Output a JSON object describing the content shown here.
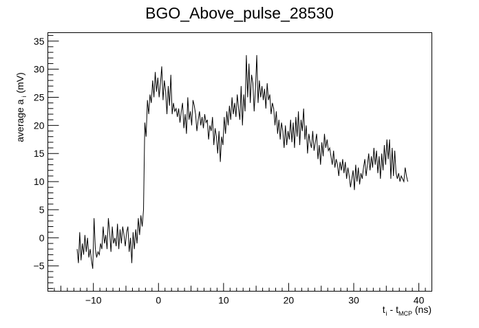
{
  "chart_data": {
    "type": "line",
    "title": "BGO_Above_pulse_28530",
    "ylabel": {
      "main": "average a",
      "sub": "i",
      "unit": " (mV)"
    },
    "xlabel": {
      "t": "t",
      "t_sub": "i",
      "sep": " - t",
      "mcp_sub": "MCP",
      "unit": " (ns)"
    },
    "xlim": [
      -17,
      42
    ],
    "ylim": [
      -9.5,
      36.5
    ],
    "x_ticks": [
      -10,
      0,
      10,
      20,
      30,
      40
    ],
    "x_tick_labels": [
      "−10",
      "0",
      "10",
      "20",
      "30",
      "40"
    ],
    "y_ticks": [
      -5,
      0,
      5,
      10,
      15,
      20,
      25,
      30,
      35
    ],
    "y_tick_labels": [
      "−5",
      "0",
      "5",
      "10",
      "15",
      "20",
      "25",
      "30",
      "35"
    ],
    "line_color": "#000000",
    "grid": false,
    "legend": "none",
    "series": [
      {
        "x_start": -12.5,
        "x_step": 0.2,
        "values": [
          -2.0,
          -4.5,
          1.0,
          -4.0,
          -1.0,
          -3.0,
          0.5,
          -2.5,
          0.0,
          -3.5,
          -2.0,
          -4.0,
          -5.5,
          3.5,
          -2.0,
          -3.5,
          -2.5,
          -3.0,
          -1.0,
          -2.0,
          2.0,
          -1.0,
          0.5,
          -2.0,
          3.5,
          1.0,
          -2.5,
          2.0,
          -1.0,
          0.0,
          -1.5,
          2.5,
          -2.0,
          1.5,
          -1.0,
          2.0,
          0.5,
          -1.5,
          1.0,
          2.0,
          -2.5,
          0.0,
          -4.5,
          1.0,
          -2.0,
          1.5,
          -1.0,
          3.5,
          0.5,
          4.0,
          2.0,
          5.0,
          20.5,
          18.0,
          24.5,
          22.0,
          25.5,
          24.0,
          28.0,
          25.0,
          29.5,
          26.0,
          28.5,
          25.0,
          27.5,
          30.5,
          24.5,
          28.0,
          26.0,
          22.0,
          27.0,
          23.5,
          29.0,
          22.0,
          24.0,
          22.5,
          23.0,
          21.5,
          23.0,
          20.5,
          22.5,
          24.0,
          19.5,
          22.0,
          18.5,
          25.0,
          21.0,
          22.5,
          20.0,
          24.5,
          23.5,
          22.0,
          19.0,
          21.0,
          22.5,
          20.0,
          21.5,
          19.5,
          22.0,
          20.5,
          21.0,
          17.5,
          20.0,
          19.0,
          21.5,
          16.5,
          19.5,
          18.0,
          15.0,
          19.0,
          13.5,
          18.0,
          16.5,
          21.5,
          18.5,
          22.5,
          20.0,
          23.5,
          21.0,
          25.0,
          22.0,
          24.0,
          21.5,
          25.5,
          23.0,
          21.0,
          27.0,
          20.0,
          25.5,
          22.5,
          32.5,
          25.0,
          31.0,
          24.0,
          29.0,
          27.5,
          22.5,
          26.5,
          32.5,
          24.0,
          28.0,
          25.0,
          27.0,
          24.5,
          26.5,
          23.0,
          27.5,
          24.5,
          25.5,
          22.0,
          24.0,
          23.0,
          20.0,
          22.5,
          18.5,
          21.0,
          17.5,
          20.5,
          19.0,
          16.0,
          20.0,
          16.5,
          19.0,
          17.5,
          21.0,
          17.0,
          20.5,
          16.0,
          21.5,
          18.0,
          22.5,
          16.5,
          21.0,
          19.0,
          23.0,
          17.5,
          20.0,
          15.0,
          18.5,
          17.0,
          16.0,
          19.0,
          15.5,
          17.0,
          18.5,
          14.0,
          16.5,
          13.0,
          17.0,
          14.5,
          18.5,
          16.0,
          17.5,
          15.5,
          16.0,
          14.5,
          13.0,
          15.5,
          12.5,
          14.0,
          13.0,
          11.0,
          13.5,
          12.0,
          14.0,
          11.5,
          13.5,
          10.5,
          12.5,
          11.0,
          9.0,
          10.5,
          12.0,
          8.5,
          13.0,
          10.0,
          12.5,
          9.5,
          11.5,
          10.5,
          12.5,
          14.0,
          11.0,
          13.0,
          15.0,
          12.0,
          14.5,
          12.5,
          16.0,
          13.0,
          15.5,
          11.5,
          14.5,
          10.5,
          15.0,
          12.0,
          16.5,
          13.0,
          17.5,
          14.0,
          17.5,
          10.5,
          16.0,
          11.0,
          15.5,
          11.5,
          10.5,
          11.5,
          10.0,
          11.0,
          10.5,
          10.0,
          12.5,
          11.0,
          10.0
        ]
      }
    ]
  }
}
